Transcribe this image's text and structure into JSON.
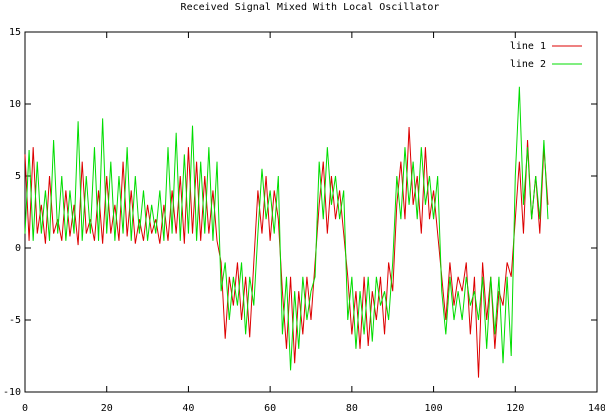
{
  "chart_data": {
    "type": "line",
    "title": "Received Signal Mixed With Local Oscillator",
    "x": [
      0,
      1,
      2,
      3,
      4,
      5,
      6,
      7,
      8,
      9,
      10,
      11,
      12,
      13,
      14,
      15,
      16,
      17,
      18,
      19,
      20,
      21,
      22,
      23,
      24,
      25,
      26,
      27,
      28,
      29,
      30,
      31,
      32,
      33,
      34,
      35,
      36,
      37,
      38,
      39,
      40,
      41,
      42,
      43,
      44,
      45,
      46,
      47,
      48,
      49,
      50,
      51,
      52,
      53,
      54,
      55,
      56,
      57,
      58,
      59,
      60,
      61,
      62,
      63,
      64,
      65,
      66,
      67,
      68,
      69,
      70,
      71,
      72,
      73,
      74,
      75,
      76,
      77,
      78,
      79,
      80,
      81,
      82,
      83,
      84,
      85,
      86,
      87,
      88,
      89,
      90,
      91,
      92,
      93,
      94,
      95,
      96,
      97,
      98,
      99,
      100,
      101,
      102,
      103,
      104,
      105,
      106,
      107,
      108,
      109,
      110,
      111,
      112,
      113,
      114,
      115,
      116,
      117,
      118,
      119,
      120,
      121,
      122,
      123,
      124,
      125,
      126,
      127,
      128
    ],
    "series": [
      {
        "name": "line 1",
        "color": "#dd0000",
        "values": [
          6.5,
          0.5,
          7,
          1,
          3,
          0.3,
          5,
          1,
          2,
          0.5,
          4,
          0.8,
          3,
          0.2,
          6,
          1,
          2,
          0.5,
          4,
          0.3,
          5,
          1,
          3,
          0.5,
          6,
          0.8,
          4,
          0.3,
          2,
          0.5,
          3,
          1,
          2,
          0.3,
          3,
          0.5,
          4,
          1,
          5,
          0.3,
          7,
          1,
          6,
          0.5,
          5,
          1,
          4,
          0.5,
          -1,
          -6.3,
          -2,
          -4,
          -1,
          -5,
          -2,
          -6.2,
          -1,
          4,
          1,
          5,
          0.5,
          4,
          2,
          -3,
          -7,
          -2,
          -8,
          -3,
          -6,
          -2,
          -5,
          -1,
          3,
          6,
          1,
          5,
          2,
          4,
          1,
          -2,
          -6,
          -3,
          -7,
          -2,
          -6.8,
          -3,
          -5,
          -2,
          -6,
          -1,
          -3,
          3,
          6,
          2,
          8.4,
          3,
          5,
          1,
          7,
          2,
          4,
          1,
          -2,
          -5,
          -1,
          -4,
          -2,
          -3,
          -1,
          -6,
          -2,
          -9,
          -1,
          -5,
          -2,
          -7,
          -3,
          -4,
          -1,
          -2,
          2,
          6,
          1,
          7.5,
          2,
          5,
          1,
          7,
          3
        ]
      },
      {
        "name": "line 2",
        "color": "#00dd00",
        "values": [
          1,
          6.8,
          0.5,
          6,
          1,
          4,
          0.5,
          7.5,
          1,
          5,
          0.5,
          4,
          1,
          8.8,
          0.5,
          5,
          1,
          7,
          0.5,
          9,
          1,
          6,
          0.5,
          5,
          1,
          7,
          0.5,
          5,
          1,
          4,
          0.5,
          3,
          1,
          4,
          0.5,
          7,
          1,
          8,
          0.5,
          6.5,
          1,
          8.5,
          0.5,
          6,
          1,
          7,
          0.5,
          6,
          -3,
          -1,
          -5,
          -2,
          -4,
          -1,
          -6,
          -2,
          -4,
          1,
          5.5,
          2,
          4,
          1,
          5,
          -6,
          -2,
          -8.5,
          -3,
          -7,
          -2,
          -5,
          -3,
          -2,
          6,
          2,
          7,
          3,
          5,
          2,
          4,
          -5,
          -2,
          -7,
          -3,
          -6,
          -2,
          -6.5,
          -2,
          -4,
          -3,
          -5,
          -1,
          5,
          2,
          7,
          3,
          6,
          2,
          7,
          3,
          5,
          2,
          5,
          -3,
          -6,
          -2,
          -5,
          -3,
          -5,
          -2,
          -4,
          -3,
          -5,
          -2,
          -7,
          -2,
          -6,
          -2,
          -8,
          -2,
          -7.5,
          5,
          11.2,
          3,
          7,
          2,
          5,
          2,
          7.5,
          2
        ]
      }
    ],
    "xlim": [
      0,
      140
    ],
    "xticks": [
      0,
      20,
      40,
      60,
      80,
      100,
      120,
      140
    ],
    "ylim": [
      -10,
      15
    ],
    "yticks": [
      -10,
      -5,
      0,
      5,
      10,
      15
    ],
    "legend": "top-right"
  }
}
